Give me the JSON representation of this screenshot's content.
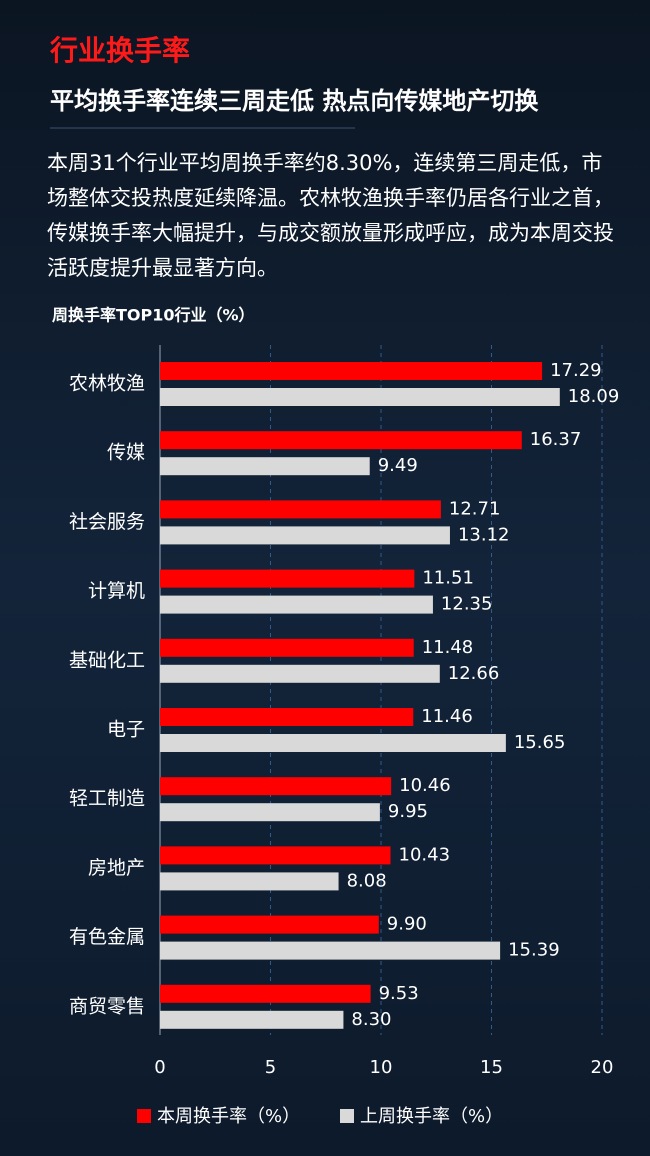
{
  "header": {
    "title": "行业换手率",
    "subtitle": "平均换手率连续三周走低 热点向传媒地产切换",
    "body": "本周31个行业平均周换手率约8.30%，连续第三周走低，市场整体交投热度延续降温。农林牧渔换手率仍居各行业之首，传媒换手率大幅提升，与成交额放量形成呼应，成为本周交投活跃度提升最显著方向。"
  },
  "chart_data": {
    "type": "bar",
    "orientation": "horizontal",
    "title": "周换手率TOP10行业（%）",
    "categories": [
      "农林牧渔",
      "传媒",
      "社会服务",
      "计算机",
      "基础化工",
      "电子",
      "轻工制造",
      "房地产",
      "有色金属",
      "商贸零售"
    ],
    "series": [
      {
        "name": "本周换手率（%）",
        "color": "#ff0000",
        "values": [
          17.29,
          16.37,
          12.71,
          11.51,
          11.48,
          11.46,
          10.46,
          10.43,
          9.9,
          9.53
        ],
        "value_labels": [
          "17.29",
          "16.37",
          "12.71",
          "11.51",
          "11.48",
          "11.46",
          "10.46",
          "10.43",
          "9.90",
          "9.53"
        ]
      },
      {
        "name": "上周换手率（%）",
        "color": "#d9d9d9",
        "values": [
          18.09,
          9.49,
          13.12,
          12.35,
          12.66,
          15.65,
          9.95,
          8.08,
          15.39,
          8.3
        ],
        "value_labels": [
          "18.09",
          "9.49",
          "13.12",
          "12.35",
          "12.66",
          "15.65",
          "9.95",
          "8.08",
          "15.39",
          "8.30"
        ]
      }
    ],
    "xlim": [
      0,
      20
    ],
    "xticks": [
      0,
      5,
      10,
      15,
      20
    ],
    "grid": true,
    "legend": "bottom"
  }
}
